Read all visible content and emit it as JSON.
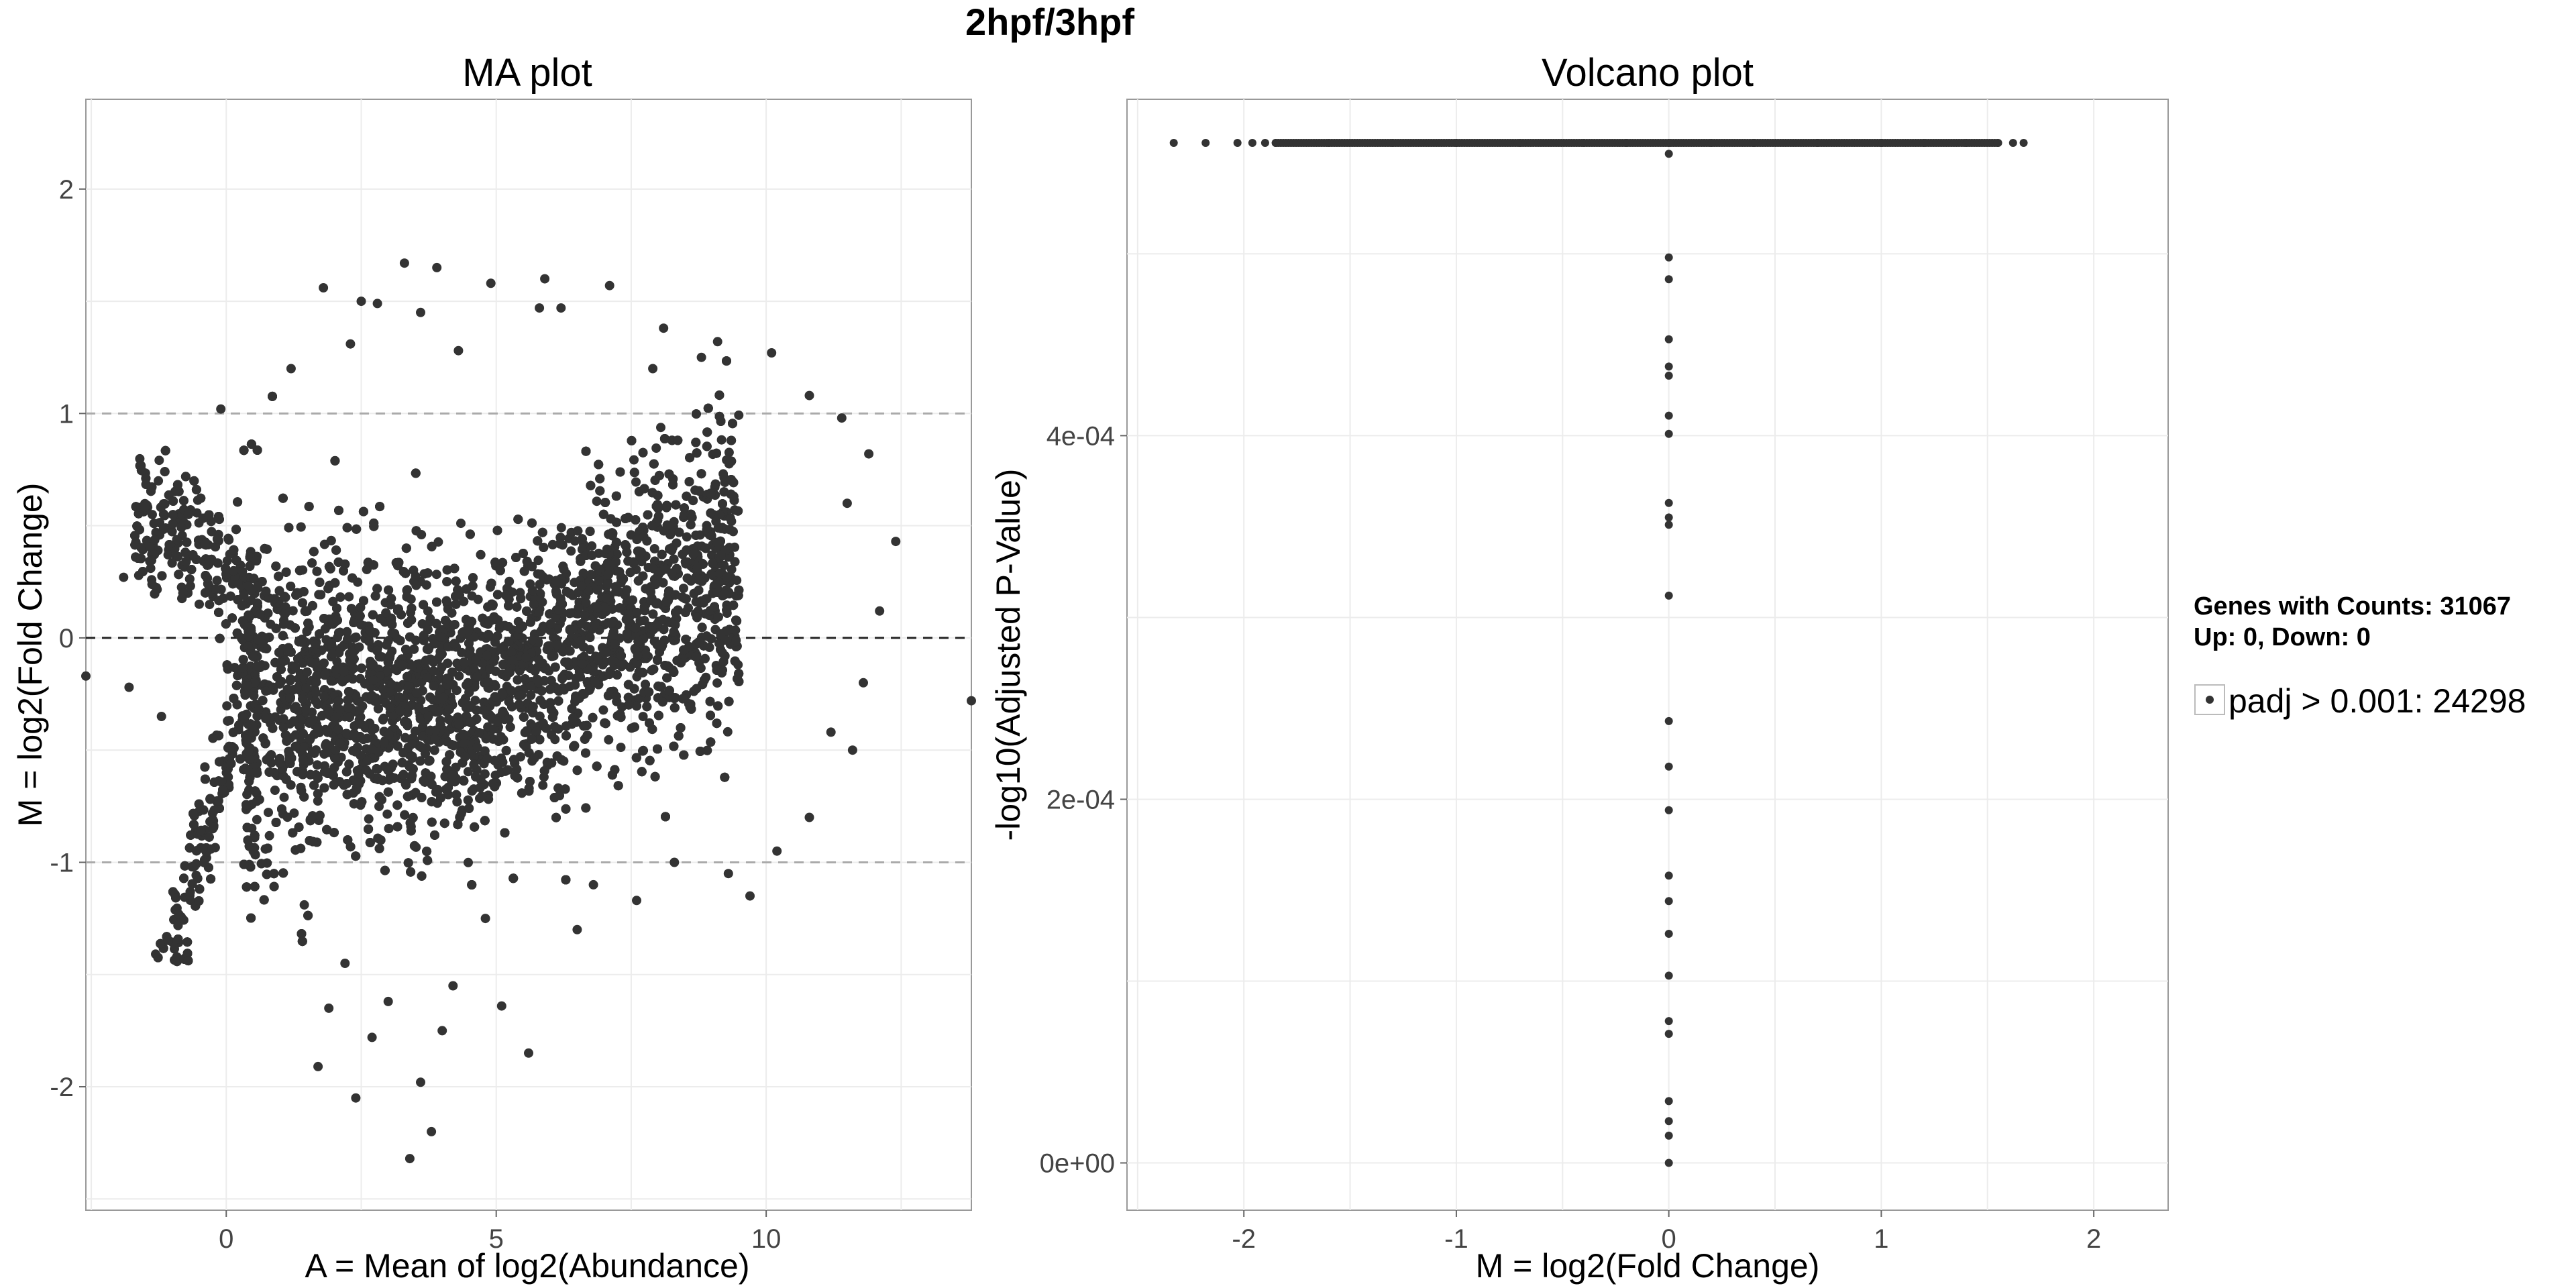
{
  "figure": {
    "title": "2hpf/3hpf"
  },
  "chart_data": [
    {
      "type": "scatter",
      "title": "MA plot",
      "xlabel": "A = Mean of log2(Abundance)",
      "ylabel": "M = log2(Fold Change)",
      "xlim": [
        -2.6,
        13.8
      ],
      "ylim": [
        -2.55,
        2.4
      ],
      "xticks": [
        0,
        5,
        10
      ],
      "xtick_labels": [
        "0",
        "5",
        "10"
      ],
      "yticks": [
        -2,
        -1,
        0,
        1,
        2
      ],
      "ytick_labels": [
        "-2",
        "-1",
        "0",
        "1",
        "2"
      ],
      "grid": true,
      "reference_lines": [
        {
          "y": 0,
          "style": "dashed",
          "color": "#222222"
        },
        {
          "y": 1,
          "style": "dashed",
          "color": "#aaaaaa"
        },
        {
          "y": -1,
          "style": "dashed",
          "color": "#aaaaaa"
        }
      ],
      "point_color": "#333333",
      "series": [
        {
          "values": [
            [
              -2.6,
              -0.17
            ],
            [
              13.8,
              -0.28
            ],
            [
              12.4,
              0.43
            ],
            [
              12.1,
              0.12
            ],
            [
              11.9,
              0.82
            ],
            [
              11.5,
              0.6
            ],
            [
              11.8,
              -0.2
            ],
            [
              11.6,
              -0.5
            ],
            [
              11.2,
              -0.42
            ],
            [
              10.8,
              -0.8
            ],
            [
              10.2,
              -0.95
            ],
            [
              9.7,
              -1.15
            ],
            [
              9.3,
              -1.05
            ],
            [
              7.6,
              -1.17
            ],
            [
              8.3,
              -1.0
            ],
            [
              6.8,
              -1.1
            ],
            [
              5.6,
              -1.85
            ],
            [
              5.1,
              -1.64
            ],
            [
              4.8,
              -1.25
            ],
            [
              4.2,
              -1.55
            ],
            [
              4.0,
              -1.75
            ],
            [
              3.8,
              -2.2
            ],
            [
              3.4,
              -2.32
            ],
            [
              3.6,
              -1.98
            ],
            [
              2.4,
              -2.05
            ],
            [
              1.7,
              -1.91
            ],
            [
              2.7,
              -1.78
            ],
            [
              3.0,
              -1.62
            ],
            [
              2.2,
              -1.45
            ],
            [
              1.9,
              -1.65
            ],
            [
              3.3,
              1.67
            ],
            [
              3.9,
              1.65
            ],
            [
              4.9,
              1.58
            ],
            [
              5.9,
              1.6
            ],
            [
              7.1,
              1.57
            ],
            [
              2.8,
              1.49
            ],
            [
              1.8,
              1.56
            ],
            [
              2.5,
              1.5
            ],
            [
              3.6,
              1.45
            ],
            [
              5.8,
              1.47
            ],
            [
              6.2,
              1.47
            ],
            [
              8.1,
              1.38
            ],
            [
              9.1,
              1.32
            ],
            [
              10.1,
              1.27
            ],
            [
              10.8,
              1.08
            ],
            [
              11.4,
              0.98
            ],
            [
              8.8,
              1.25
            ],
            [
              4.3,
              1.28
            ],
            [
              2.3,
              1.31
            ],
            [
              1.2,
              1.2
            ],
            [
              -0.1,
              1.02
            ],
            [
              -0.7,
              0.55
            ],
            [
              -1.4,
              0.31
            ],
            [
              -1.9,
              0.27
            ],
            [
              -0.5,
              0.15
            ],
            [
              0.5,
              -0.95
            ],
            [
              -1.8,
              -0.22
            ],
            [
              -1.2,
              -0.35
            ],
            [
              6.5,
              -1.3
            ],
            [
              7.9,
              1.2
            ]
          ]
        }
      ]
    },
    {
      "type": "scatter",
      "title": "Volcano plot",
      "xlabel": "M = log2(Fold Change)",
      "ylabel": "-log10(Adjusted P-Value)",
      "xlim": [
        -2.55,
        2.35
      ],
      "ylim": [
        -2.6e-05,
        0.000585
      ],
      "xticks": [
        -2,
        -1,
        0,
        1,
        2
      ],
      "xtick_labels": [
        "-2",
        "-1",
        "0",
        "1",
        "2"
      ],
      "yticks": [
        0,
        0.0002,
        0.0004
      ],
      "ytick_labels": [
        "0e+00",
        "2e-04",
        "4e-04"
      ],
      "grid": true,
      "point_color": "#333333",
      "series": [
        {
          "values": [
            [
              -2.33,
              0.000561
            ],
            [
              -2.18,
              0.000561
            ],
            [
              -2.03,
              0.000561
            ],
            [
              -1.96,
              0.000561
            ],
            [
              -1.9,
              0.000561
            ],
            [
              -1.85,
              0.000561
            ],
            [
              -1.6,
              0.000561
            ],
            [
              -1.3,
              0.000561
            ],
            [
              -1.0,
              0.000561
            ],
            [
              -0.7,
              0.000561
            ],
            [
              -0.4,
              0.000561
            ],
            [
              -0.2,
              0.000561
            ],
            [
              0,
              0.000561
            ],
            [
              0.2,
              0.000561
            ],
            [
              0.4,
              0.000561
            ],
            [
              0.7,
              0.000561
            ],
            [
              1.0,
              0.000561
            ],
            [
              1.2,
              0.000561
            ],
            [
              1.4,
              0.000561
            ],
            [
              1.55,
              0.000561
            ],
            [
              1.62,
              0.000561
            ],
            [
              1.67,
              0.000561
            ],
            [
              0,
              0.000555
            ],
            [
              0,
              0.000498
            ],
            [
              0,
              0.000486
            ],
            [
              0,
              0.000453
            ],
            [
              0,
              0.000438
            ],
            [
              0,
              0.000433
            ],
            [
              0,
              0.000411
            ],
            [
              0,
              0.000401
            ],
            [
              0,
              0.000363
            ],
            [
              0,
              0.000355
            ],
            [
              0,
              0.000351
            ],
            [
              0,
              0.000312
            ],
            [
              0,
              0.000243
            ],
            [
              0,
              0.000218
            ],
            [
              0,
              0.000194
            ],
            [
              0,
              0.000158
            ],
            [
              0,
              0.000144
            ],
            [
              0,
              0.000126
            ],
            [
              0,
              0.000103
            ],
            [
              0,
              7.8e-05
            ],
            [
              0,
              7.1e-05
            ],
            [
              0,
              3.4e-05
            ],
            [
              0,
              2.3e-05
            ],
            [
              0,
              1.5e-05
            ],
            [
              0,
              0.0
            ]
          ]
        }
      ]
    }
  ],
  "legend": {
    "heading_line1": "Genes with Counts: 31067",
    "heading_line2": "Up: 0, Down: 0",
    "item_label": "padj > 0.001: 24298",
    "placement": "right"
  }
}
